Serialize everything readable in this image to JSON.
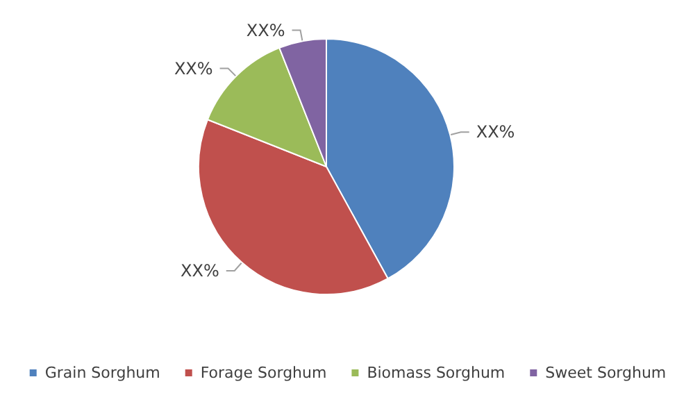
{
  "chart_data": {
    "type": "pie",
    "categories": [
      "Grain Sorghum",
      "Forage Sorghum",
      "Biomass Sorghum",
      "Sweet Sorghum"
    ],
    "values": [
      42,
      39,
      13,
      6
    ],
    "value_labels": [
      "XX%",
      "XX%",
      "XX%",
      "XX%"
    ],
    "colors": [
      "#4f81bd",
      "#c0504d",
      "#9bbb59",
      "#8064a2"
    ],
    "legend": "bottom"
  }
}
